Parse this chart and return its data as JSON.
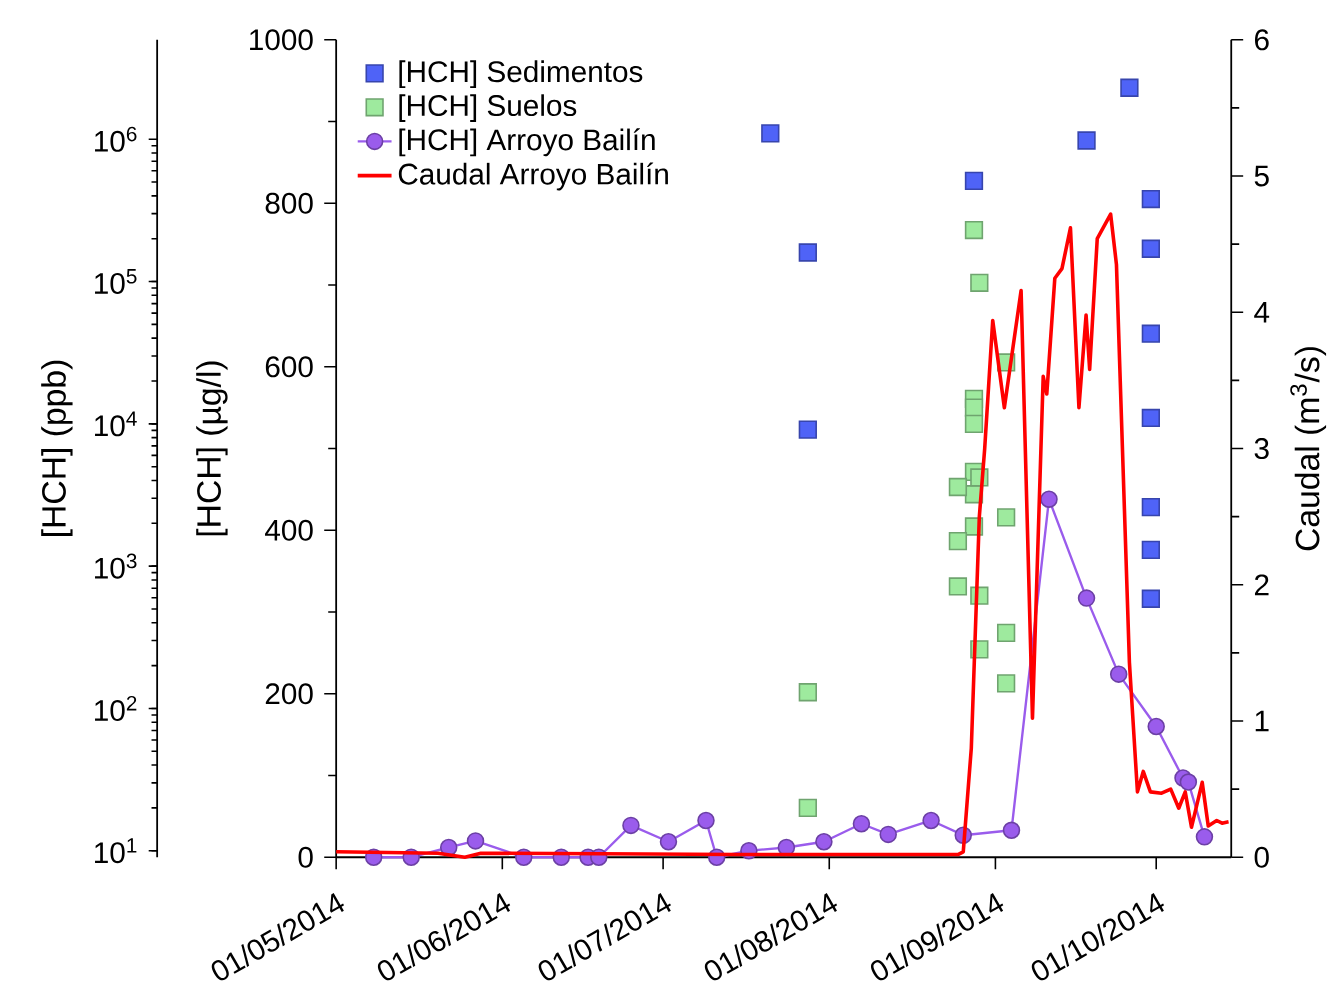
{
  "chart_data": {
    "type": "scatter",
    "xlim": [
      "2014-05-01",
      "2014-10-15"
    ],
    "xticks": [
      {
        "value": "2014-05-01",
        "label": "01/05/2014"
      },
      {
        "value": "2014-06-01",
        "label": "01/06/2014"
      },
      {
        "value": "2014-07-01",
        "label": "01/07/2014"
      },
      {
        "value": "2014-08-01",
        "label": "01/08/2014"
      },
      {
        "value": "2014-09-01",
        "label": "01/09/2014"
      },
      {
        "value": "2014-10-01",
        "label": "01/10/2014"
      }
    ],
    "ylabel": "[HCH] (µg/l)",
    "ylim": [
      0,
      1000
    ],
    "yticks": [
      0,
      200,
      400,
      600,
      800,
      1000
    ],
    "y2label": "Caudal (m$^{3}$/s)",
    "y2lim": [
      0,
      6
    ],
    "y2ticks": [
      0,
      1,
      2,
      3,
      4,
      5,
      6
    ],
    "y3label": "[HCH] (ppb)",
    "y3lim": [
      9,
      5000000
    ],
    "y3ticks": [
      {
        "value": 10,
        "label": "10$^{1}$"
      },
      {
        "value": 100,
        "label": "10$^{2}$"
      },
      {
        "value": 1000,
        "label": "10$^{3}$"
      },
      {
        "value": 10000,
        "label": "10$^{4}$"
      },
      {
        "value": 100000,
        "label": "10$^{5}$"
      },
      {
        "value": 1000000,
        "label": "10$^{6}$"
      }
    ],
    "log": "y3",
    "legend": "top left",
    "series": [
      {
        "name": "[HCH] Sedimentos",
        "axis": "y3",
        "marker": "square",
        "color": "#4f63f7",
        "x": [
          "2014-07-21",
          "2014-07-28",
          "2014-07-28",
          "2014-08-28",
          "2014-09-18",
          "2014-09-26",
          "2014-09-30",
          "2014-09-30",
          "2014-09-30",
          "2014-09-30",
          "2014-09-30",
          "2014-09-30",
          "2014-09-30"
        ],
        "values": [
          1100000,
          160000,
          9100,
          510000,
          980000,
          2300000,
          380000,
          170000,
          43000,
          11000,
          2600,
          1300,
          590
        ]
      },
      {
        "name": "[HCH] Suelos",
        "axis": "y3",
        "marker": "square",
        "color": "#9eea9e",
        "x": [
          "2014-07-28",
          "2014-07-28",
          "2014-08-28",
          "2014-08-28",
          "2014-08-28",
          "2014-08-28",
          "2014-08-28",
          "2014-08-28",
          "2014-08-28",
          "2014-08-29",
          "2014-08-29",
          "2014-08-29",
          "2014-08-29",
          "2014-08-25",
          "2014-08-25",
          "2014-08-25",
          "2014-09-03",
          "2014-09-03",
          "2014-09-03",
          "2014-09-03"
        ],
        "values": [
          130,
          20,
          230000,
          15000,
          13000,
          10000,
          4600,
          3200,
          1900,
          98000,
          4200,
          620,
          260,
          3600,
          1500,
          720,
          27000,
          2200,
          340,
          150
        ]
      },
      {
        "name": "[HCH] Arroyo Bailín",
        "type": "line",
        "axis": "y",
        "marker": "circle",
        "color": "#9a5cec",
        "x": [
          "2014-05-08",
          "2014-05-15",
          "2014-05-22",
          "2014-05-27",
          "2014-06-05",
          "2014-06-12",
          "2014-06-17",
          "2014-06-19",
          "2014-06-25",
          "2014-07-02",
          "2014-07-09",
          "2014-07-11",
          "2014-07-17",
          "2014-07-24",
          "2014-07-31",
          "2014-08-07",
          "2014-08-12",
          "2014-08-20",
          "2014-08-26",
          "2014-09-04",
          "2014-09-11",
          "2014-09-18",
          "2014-09-24",
          "2014-10-01",
          "2014-10-06",
          "2014-10-07",
          "2014-10-10"
        ],
        "values": [
          0,
          0,
          12,
          20,
          0,
          0,
          0,
          0,
          39,
          19,
          45,
          0,
          8,
          12,
          19,
          41,
          28,
          45,
          27,
          33,
          438,
          317,
          224,
          160,
          97,
          92,
          25
        ]
      },
      {
        "name": "Caudal Arroyo Bailín",
        "type": "line",
        "axis": "y2",
        "marker": "none",
        "color": "#ff0000",
        "x": [
          "2014-05-01",
          "2014-05-20",
          "2014-05-25",
          "2014-05-28",
          "2014-07-15",
          "2014-08-25",
          "2014-08-26",
          "2014-08-27T12:00",
          "2014-08-29",
          "2014-08-30",
          "2014-08-31T12:00",
          "2014-09-02T16:00",
          "2014-09-05T19:00",
          "2014-09-07T22:00",
          "2014-09-09T22:00",
          "2014-09-10T14:00",
          "2014-09-12T02:00",
          "2014-09-13T10:00",
          "2014-09-15",
          "2014-09-16T14:00",
          "2014-09-17T22:00",
          "2014-09-18T14:00",
          "2014-09-20",
          "2014-09-22T12:00",
          "2014-09-23T14:00",
          "2014-09-26",
          "2014-09-27T12:00",
          "2014-09-28T14:00",
          "2014-09-29T22:00",
          "2014-10-02",
          "2014-10-03T17:00",
          "2014-10-05T05:00",
          "2014-10-06T10:00",
          "2014-10-07T14:00",
          "2014-10-09T14:00",
          "2014-10-10T17:00",
          "2014-10-12T07:00",
          "2014-10-13T07:00",
          "2014-10-14T12:00"
        ],
        "values": [
          0.04,
          0.03,
          0.0,
          0.03,
          0.02,
          0.02,
          0.04,
          0.8,
          2.5,
          3.0,
          3.94,
          3.3,
          4.16,
          1.02,
          3.53,
          3.4,
          4.25,
          4.32,
          4.62,
          3.3,
          3.98,
          3.58,
          4.54,
          4.72,
          4.35,
          1.43,
          0.48,
          0.63,
          0.48,
          0.47,
          0.5,
          0.36,
          0.48,
          0.22,
          0.55,
          0.23,
          0.27,
          0.25,
          0.26
        ]
      }
    ]
  }
}
